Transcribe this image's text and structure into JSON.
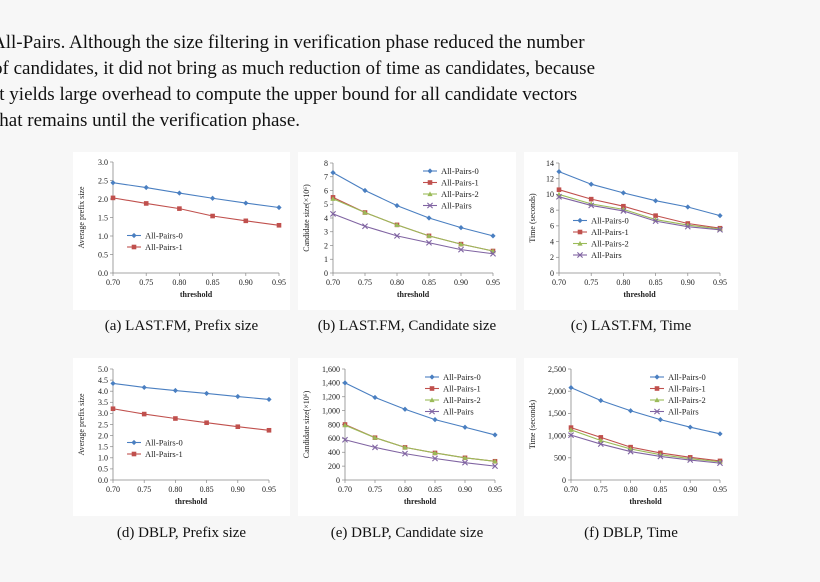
{
  "paragraph": {
    "lines": [
      "All-Pairs. Although the size filtering in verification phase reduced the number",
      "of candidates, it did not bring as much reduction of time as candidates, because",
      "it yields large overhead to compute the upper bound for all candidate vectors",
      "that remains until the verification phase."
    ]
  },
  "colors": {
    "All-Pairs-0": "#4a7fc1",
    "All-Pairs-1": "#c0504d",
    "All-Pairs-2": "#9bbb59",
    "All-Pairs": "#8064a2"
  },
  "chart_data": [
    {
      "id": "a",
      "type": "line",
      "caption": "(a) LAST.FM, Prefix size",
      "xlabel": "threshold",
      "ylabel": "Average prefix size",
      "x": [
        0.7,
        0.75,
        0.8,
        0.85,
        0.9,
        0.95
      ],
      "x_ticks": [
        "0.70",
        "0.75",
        "0.80",
        "0.85",
        "0.90",
        "0.95"
      ],
      "ylim": [
        0,
        3.0
      ],
      "y_ticks": [
        "0.0",
        "0.5",
        "1.0",
        "1.5",
        "2.0",
        "2.5",
        "3.0"
      ],
      "legend": "bottom-left",
      "series": [
        {
          "name": "All-Pairs-0",
          "values": [
            2.44,
            2.31,
            2.16,
            2.02,
            1.89,
            1.77
          ]
        },
        {
          "name": "All-Pairs-1",
          "values": [
            2.03,
            1.88,
            1.74,
            1.54,
            1.41,
            1.29
          ]
        }
      ]
    },
    {
      "id": "b",
      "type": "line",
      "caption": "(b) LAST.FM, Candidate size",
      "xlabel": "threshold",
      "ylabel": "Candidate size(×10⁶)",
      "x": [
        0.7,
        0.75,
        0.8,
        0.85,
        0.9,
        0.95
      ],
      "x_ticks": [
        "0.70",
        "0.75",
        "0.80",
        "0.85",
        "0.90",
        "0.95"
      ],
      "ylim": [
        0,
        8
      ],
      "y_ticks": [
        "0",
        "1",
        "2",
        "3",
        "4",
        "5",
        "6",
        "7",
        "8"
      ],
      "legend": "top-right",
      "series": [
        {
          "name": "All-Pairs-0",
          "values": [
            7.3,
            6.0,
            4.9,
            4.0,
            3.3,
            2.7
          ]
        },
        {
          "name": "All-Pairs-1",
          "values": [
            5.5,
            4.4,
            3.5,
            2.7,
            2.1,
            1.6
          ]
        },
        {
          "name": "All-Pairs-2",
          "values": [
            5.4,
            4.4,
            3.5,
            2.7,
            2.1,
            1.6
          ]
        },
        {
          "name": "All-Pairs",
          "values": [
            4.3,
            3.4,
            2.7,
            2.2,
            1.7,
            1.4
          ]
        }
      ]
    },
    {
      "id": "c",
      "type": "line",
      "caption": "(c) LAST.FM, Time",
      "xlabel": "threshold",
      "ylabel": "Time (seconds)",
      "x": [
        0.7,
        0.75,
        0.8,
        0.85,
        0.9,
        0.95
      ],
      "x_ticks": [
        "0.70",
        "0.75",
        "0.80",
        "0.85",
        "0.90",
        "0.95"
      ],
      "ylim": [
        0,
        14
      ],
      "y_ticks": [
        "0",
        "2",
        "4",
        "6",
        "8",
        "10",
        "12",
        "14"
      ],
      "legend": "bottom-left",
      "series": [
        {
          "name": "All-Pairs-0",
          "values": [
            12.9,
            11.3,
            10.2,
            9.2,
            8.4,
            7.3
          ]
        },
        {
          "name": "All-Pairs-1",
          "values": [
            10.6,
            9.4,
            8.5,
            7.3,
            6.3,
            5.7
          ]
        },
        {
          "name": "All-Pairs-2",
          "values": [
            10.0,
            8.8,
            8.1,
            6.8,
            6.1,
            5.6
          ]
        },
        {
          "name": "All-Pairs",
          "values": [
            9.7,
            8.6,
            7.9,
            6.6,
            5.9,
            5.5
          ]
        }
      ]
    },
    {
      "id": "d",
      "type": "line",
      "caption": "(d) DBLP, Prefix size",
      "xlabel": "threshold",
      "ylabel": "Average prefix size",
      "x": [
        0.7,
        0.75,
        0.8,
        0.85,
        0.9,
        0.95
      ],
      "x_ticks": [
        "0.70",
        "0.75",
        "0.80",
        "0.85",
        "0.90",
        "0.95"
      ],
      "ylim": [
        0,
        5.0
      ],
      "y_ticks": [
        "0.0",
        "0.5",
        "1.0",
        "1.5",
        "2.0",
        "2.5",
        "3.0",
        "3.5",
        "4.0",
        "4.5",
        "5.0"
      ],
      "legend": "bottom-left",
      "series": [
        {
          "name": "All-Pairs-0",
          "values": [
            4.35,
            4.17,
            4.03,
            3.9,
            3.76,
            3.63
          ]
        },
        {
          "name": "All-Pairs-1",
          "values": [
            3.21,
            2.97,
            2.77,
            2.58,
            2.4,
            2.24
          ]
        }
      ]
    },
    {
      "id": "e",
      "type": "line",
      "caption": "(e) DBLP, Candidate size",
      "xlabel": "threshold",
      "ylabel": "Candidate size(×10⁶)",
      "x": [
        0.7,
        0.75,
        0.8,
        0.85,
        0.9,
        0.95
      ],
      "x_ticks": [
        "0.70",
        "0.75",
        "0.80",
        "0.85",
        "0.90",
        "0.95"
      ],
      "ylim": [
        0,
        1600
      ],
      "y_ticks": [
        "0",
        "200",
        "400",
        "600",
        "800",
        "1,000",
        "1,200",
        "1,400",
        "1,600"
      ],
      "legend": "top-right",
      "series": [
        {
          "name": "All-Pairs-0",
          "values": [
            1400,
            1190,
            1020,
            870,
            760,
            650
          ]
        },
        {
          "name": "All-Pairs-1",
          "values": [
            800,
            610,
            470,
            390,
            320,
            270
          ]
        },
        {
          "name": "All-Pairs-2",
          "values": [
            790,
            610,
            470,
            390,
            320,
            270
          ]
        },
        {
          "name": "All-Pairs",
          "values": [
            580,
            470,
            380,
            310,
            250,
            200
          ]
        }
      ]
    },
    {
      "id": "f",
      "type": "line",
      "caption": "(f) DBLP, Time",
      "xlabel": "threshold",
      "ylabel": "Time (seconds)",
      "x": [
        0.7,
        0.75,
        0.8,
        0.85,
        0.9,
        0.95
      ],
      "x_ticks": [
        "0.70",
        "0.75",
        "0.80",
        "0.85",
        "0.90",
        "0.95"
      ],
      "ylim": [
        0,
        2500
      ],
      "y_ticks": [
        "0",
        "500",
        "1,000",
        "1,500",
        "2,000",
        "2,500"
      ],
      "legend": "top-right",
      "series": [
        {
          "name": "All-Pairs-0",
          "values": [
            2080,
            1790,
            1560,
            1360,
            1190,
            1040
          ]
        },
        {
          "name": "All-Pairs-1",
          "values": [
            1180,
            960,
            740,
            610,
            510,
            430
          ]
        },
        {
          "name": "All-Pairs-2",
          "values": [
            1130,
            890,
            700,
            570,
            480,
            410
          ]
        },
        {
          "name": "All-Pairs",
          "values": [
            1010,
            810,
            640,
            530,
            450,
            380
          ]
        }
      ]
    }
  ]
}
